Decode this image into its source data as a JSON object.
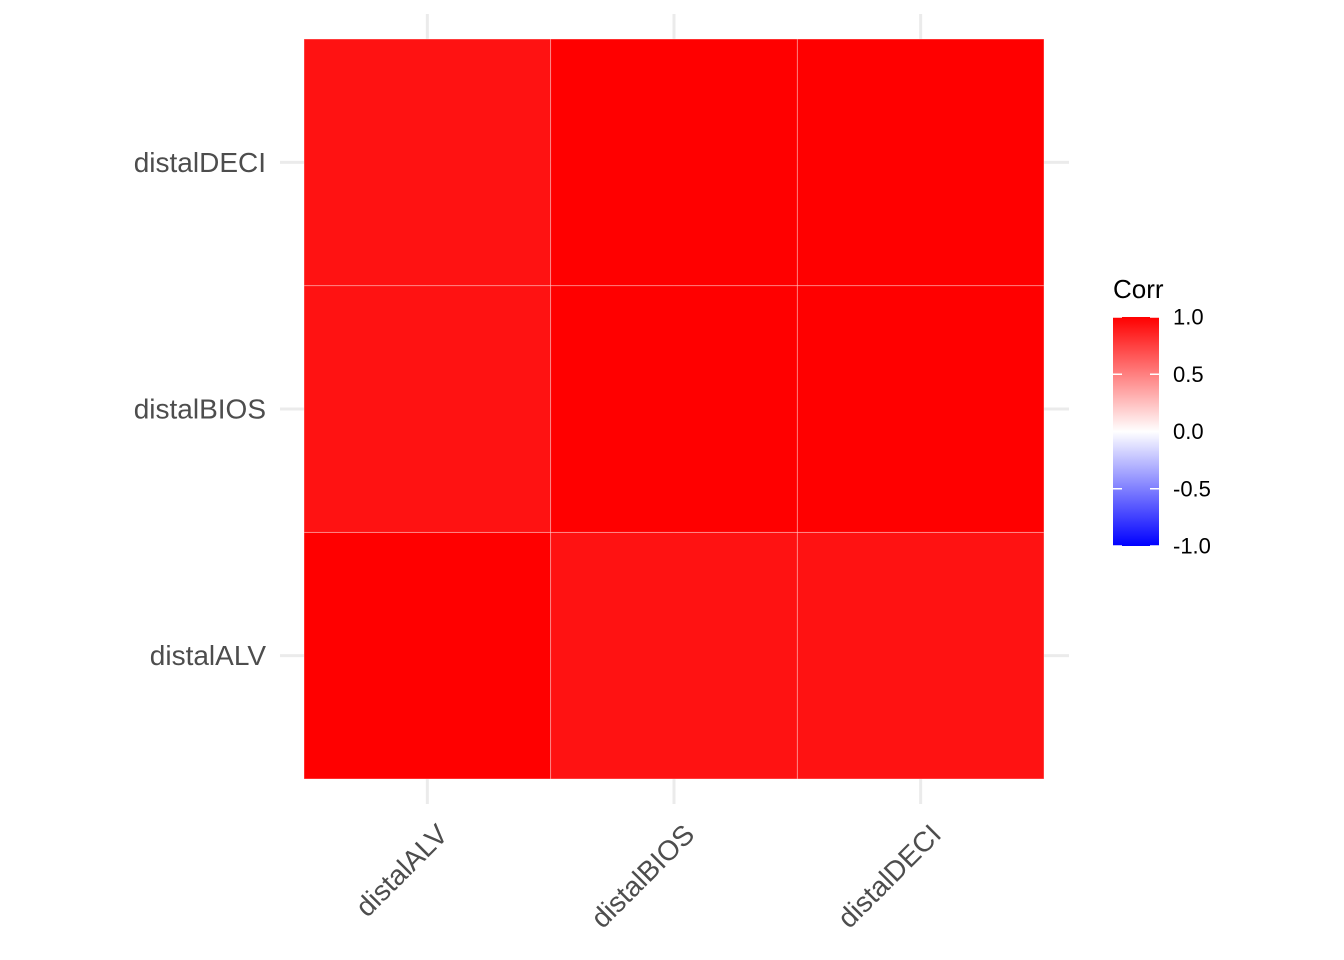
{
  "chart_data": {
    "type": "heatmap",
    "title": "",
    "xlabel": "",
    "ylabel": "",
    "x_categories": [
      "distalALV",
      "distalBIOS",
      "distalDECI"
    ],
    "y_categories": [
      "distalALV",
      "distalBIOS",
      "distalDECI"
    ],
    "cells": [
      {
        "x": "distalALV",
        "y": "distalALV",
        "value": 1.0
      },
      {
        "x": "distalBIOS",
        "y": "distalALV",
        "value": 0.93
      },
      {
        "x": "distalDECI",
        "y": "distalALV",
        "value": 0.93
      },
      {
        "x": "distalALV",
        "y": "distalBIOS",
        "value": 0.93
      },
      {
        "x": "distalBIOS",
        "y": "distalBIOS",
        "value": 1.0
      },
      {
        "x": "distalDECI",
        "y": "distalBIOS",
        "value": 1.0
      },
      {
        "x": "distalALV",
        "y": "distalDECI",
        "value": 0.93
      },
      {
        "x": "distalBIOS",
        "y": "distalDECI",
        "value": 1.0
      },
      {
        "x": "distalDECI",
        "y": "distalDECI",
        "value": 1.0
      }
    ],
    "legend": {
      "title": "Corr",
      "placement": "right",
      "limits": [
        -1.0,
        1.0
      ],
      "ticks": [
        1.0,
        0.5,
        0.0,
        -0.5,
        -1.0
      ],
      "tick_labels": [
        "1.0",
        "0.5",
        "0.0",
        "-0.5",
        "-1.0"
      ],
      "colors": {
        "low": "#0000FF",
        "mid": "#FFFFFF",
        "high": "#FF0000"
      }
    },
    "grid": true
  }
}
